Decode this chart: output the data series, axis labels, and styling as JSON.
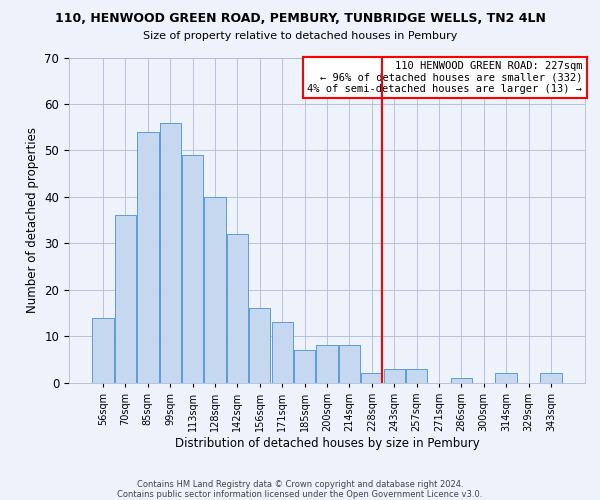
{
  "title": "110, HENWOOD GREEN ROAD, PEMBURY, TUNBRIDGE WELLS, TN2 4LN",
  "subtitle": "Size of property relative to detached houses in Pembury",
  "xlabel": "Distribution of detached houses by size in Pembury",
  "ylabel": "Number of detached properties",
  "bar_labels": [
    "56sqm",
    "70sqm",
    "85sqm",
    "99sqm",
    "113sqm",
    "128sqm",
    "142sqm",
    "156sqm",
    "171sqm",
    "185sqm",
    "200sqm",
    "214sqm",
    "228sqm",
    "243sqm",
    "257sqm",
    "271sqm",
    "286sqm",
    "300sqm",
    "314sqm",
    "329sqm",
    "343sqm"
  ],
  "bar_heights": [
    14,
    36,
    54,
    56,
    49,
    40,
    32,
    16,
    13,
    7,
    8,
    8,
    2,
    3,
    3,
    0,
    1,
    0,
    2,
    0,
    2
  ],
  "bar_color": "#c5d8f0",
  "bar_edge_color": "#5b9bd5",
  "vline_x_index": 12,
  "vline_color": "red",
  "ylim": [
    0,
    70
  ],
  "yticks": [
    0,
    10,
    20,
    30,
    40,
    50,
    60,
    70
  ],
  "annotation_title": "110 HENWOOD GREEN ROAD: 227sqm",
  "annotation_line1": "← 96% of detached houses are smaller (332)",
  "annotation_line2": "4% of semi-detached houses are larger (13) →",
  "footer_line1": "Contains HM Land Registry data © Crown copyright and database right 2024.",
  "footer_line2": "Contains public sector information licensed under the Open Government Licence v3.0.",
  "background_color": "#edf2fb"
}
